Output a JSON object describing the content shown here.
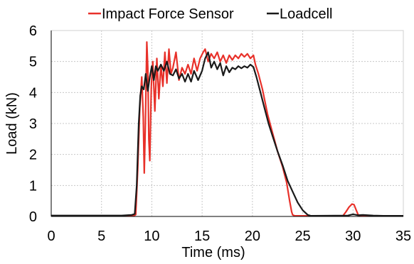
{
  "chart_data": {
    "type": "line",
    "title": "",
    "xlabel": "Time (ms)",
    "ylabel": "Load (kN)",
    "xlim": [
      0,
      35
    ],
    "ylim": [
      0,
      6
    ],
    "xticks": [
      "0",
      "5",
      "10",
      "15",
      "20",
      "25",
      "30",
      "35"
    ],
    "yticks": [
      "0",
      "1",
      "2",
      "3",
      "4",
      "5",
      "6"
    ],
    "grid": "dashed",
    "legend": "top",
    "series": [
      {
        "name": "Impact Force Sensor",
        "color": "#e8312a",
        "points": [
          [
            0,
            0.02
          ],
          [
            8.2,
            0.02
          ],
          [
            8.4,
            0.06
          ],
          [
            8.6,
            1.5
          ],
          [
            8.8,
            3.5
          ],
          [
            9.0,
            4.5
          ],
          [
            9.15,
            3.2
          ],
          [
            9.25,
            1.4
          ],
          [
            9.35,
            2.8
          ],
          [
            9.5,
            5.63
          ],
          [
            9.6,
            4.8
          ],
          [
            9.7,
            2.5
          ],
          [
            9.8,
            1.8
          ],
          [
            9.95,
            4.2
          ],
          [
            10.1,
            5.0
          ],
          [
            10.3,
            3.4
          ],
          [
            10.5,
            5.1
          ],
          [
            10.7,
            3.8
          ],
          [
            10.9,
            4.9
          ],
          [
            11.1,
            4.2
          ],
          [
            11.3,
            5.3
          ],
          [
            11.5,
            4.3
          ],
          [
            11.7,
            5.4
          ],
          [
            11.9,
            4.6
          ],
          [
            12.1,
            4.8
          ],
          [
            12.4,
            5.3
          ],
          [
            12.7,
            4.4
          ],
          [
            13.0,
            4.8
          ],
          [
            13.3,
            4.6
          ],
          [
            13.6,
            4.9
          ],
          [
            13.9,
            4.6
          ],
          [
            14.2,
            5.1
          ],
          [
            14.5,
            4.7
          ],
          [
            14.8,
            5.1
          ],
          [
            15.1,
            5.3
          ],
          [
            15.3,
            5.4
          ],
          [
            15.6,
            5.0
          ],
          [
            15.9,
            5.25
          ],
          [
            16.2,
            5.1
          ],
          [
            16.5,
            5.3
          ],
          [
            16.8,
            5.0
          ],
          [
            17.1,
            5.2
          ],
          [
            17.4,
            4.95
          ],
          [
            17.7,
            5.2
          ],
          [
            18.0,
            5.05
          ],
          [
            18.3,
            5.2
          ],
          [
            18.6,
            5.1
          ],
          [
            18.9,
            5.25
          ],
          [
            19.2,
            5.15
          ],
          [
            19.5,
            5.25
          ],
          [
            19.8,
            5.1
          ],
          [
            20.1,
            5.2
          ],
          [
            20.3,
            4.9
          ],
          [
            20.6,
            4.6
          ],
          [
            21.0,
            4.1
          ],
          [
            21.5,
            3.3
          ],
          [
            22.0,
            2.7
          ],
          [
            22.5,
            2.1
          ],
          [
            23.0,
            1.6
          ],
          [
            23.4,
            1.1
          ],
          [
            23.7,
            0.5
          ],
          [
            23.9,
            0.15
          ],
          [
            24.0,
            0.05
          ],
          [
            24.2,
            0.02
          ],
          [
            29.0,
            0.02
          ],
          [
            29.3,
            0.15
          ],
          [
            29.6,
            0.3
          ],
          [
            29.9,
            0.4
          ],
          [
            30.1,
            0.38
          ],
          [
            30.3,
            0.22
          ],
          [
            30.5,
            0.06
          ],
          [
            30.7,
            0.02
          ],
          [
            35,
            0.02
          ]
        ]
      },
      {
        "name": "Loadcell",
        "color": "#1a1a1a",
        "points": [
          [
            0,
            0.03
          ],
          [
            7.0,
            0.03
          ],
          [
            8.0,
            0.05
          ],
          [
            8.3,
            0.08
          ],
          [
            8.5,
            1.0
          ],
          [
            8.7,
            3.0
          ],
          [
            8.85,
            3.9
          ],
          [
            9.0,
            4.2
          ],
          [
            9.2,
            4.1
          ],
          [
            9.4,
            4.6
          ],
          [
            9.6,
            4.05
          ],
          [
            9.8,
            4.5
          ],
          [
            10.0,
            4.85
          ],
          [
            10.2,
            4.4
          ],
          [
            10.4,
            4.85
          ],
          [
            10.6,
            4.7
          ],
          [
            10.9,
            4.9
          ],
          [
            11.2,
            4.7
          ],
          [
            11.5,
            5.0
          ],
          [
            11.8,
            4.6
          ],
          [
            12.1,
            4.55
          ],
          [
            12.4,
            4.75
          ],
          [
            12.7,
            4.45
          ],
          [
            13.0,
            4.6
          ],
          [
            13.3,
            4.35
          ],
          [
            13.6,
            4.6
          ],
          [
            13.9,
            4.35
          ],
          [
            14.2,
            4.7
          ],
          [
            14.6,
            4.4
          ],
          [
            15.0,
            4.7
          ],
          [
            15.3,
            5.1
          ],
          [
            15.6,
            5.3
          ],
          [
            15.9,
            4.8
          ],
          [
            16.2,
            5.0
          ],
          [
            16.5,
            4.75
          ],
          [
            16.8,
            4.95
          ],
          [
            17.1,
            4.55
          ],
          [
            17.4,
            4.85
          ],
          [
            17.7,
            4.65
          ],
          [
            18.0,
            4.8
          ],
          [
            18.3,
            4.75
          ],
          [
            18.6,
            4.85
          ],
          [
            18.9,
            4.78
          ],
          [
            19.2,
            4.85
          ],
          [
            19.5,
            4.8
          ],
          [
            19.8,
            4.9
          ],
          [
            20.1,
            4.82
          ],
          [
            20.4,
            4.5
          ],
          [
            20.8,
            4.0
          ],
          [
            21.2,
            3.5
          ],
          [
            21.6,
            3.0
          ],
          [
            22.0,
            2.6
          ],
          [
            22.5,
            2.1
          ],
          [
            23.0,
            1.65
          ],
          [
            23.5,
            1.15
          ],
          [
            24.0,
            0.8
          ],
          [
            24.5,
            0.45
          ],
          [
            25.0,
            0.2
          ],
          [
            25.5,
            0.05
          ],
          [
            25.8,
            0.02
          ],
          [
            29.5,
            0.03
          ],
          [
            30.0,
            0.07
          ],
          [
            30.5,
            0.04
          ],
          [
            31.0,
            0.05
          ],
          [
            32.0,
            0.03
          ],
          [
            33.0,
            0.02
          ],
          [
            35,
            0.02
          ]
        ]
      }
    ]
  }
}
